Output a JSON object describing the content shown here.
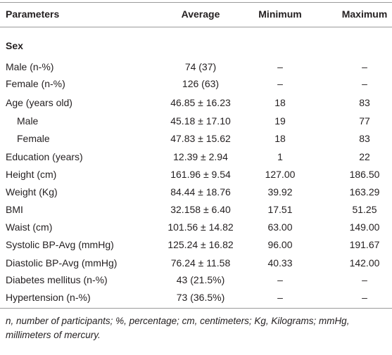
{
  "table": {
    "header": [
      "Parameters",
      "Average",
      "Minimum",
      "Maximum"
    ],
    "section": "Sex",
    "rows": [
      [
        "Male (n-%)",
        "74 (37)",
        "–",
        "–"
      ],
      [
        "Female (n-%)",
        "126 (63)",
        "–",
        "–"
      ],
      [
        "Age (years old)",
        "46.85 ± 16.23",
        "18",
        "83"
      ],
      [
        "Male",
        "45.18 ± 17.10",
        "19",
        "77"
      ],
      [
        "Female",
        "47.83 ± 15.62",
        "18",
        "83"
      ],
      [
        "Education (years)",
        "12.39 ± 2.94",
        "1",
        "22"
      ],
      [
        "Height (cm)",
        "161.96 ± 9.54",
        "127.00",
        "186.50"
      ],
      [
        "Weight (Kg)",
        "84.44 ± 18.76",
        "39.92",
        "163.29"
      ],
      [
        "BMI",
        "32.158 ± 6.40",
        "17.51",
        "51.25"
      ],
      [
        "Waist (cm)",
        "101.56 ± 14.82",
        "63.00",
        "149.00"
      ],
      [
        "Systolic BP-Avg (mmHg)",
        "125.24 ± 16.82",
        "96.00",
        "191.67"
      ],
      [
        "Diastolic BP-Avg (mmHg)",
        "76.24 ± 11.58",
        "40.33",
        "142.00"
      ],
      [
        "Diabetes mellitus (n-%)",
        "43 (21.5%)",
        "–",
        "–"
      ],
      [
        "Hypertension (n-%)",
        "73 (36.5%)",
        "–",
        "–"
      ]
    ],
    "footnote": "n, number of participants; %, percentage; cm, centimeters; Kg, Kilograms; mmHg, millimeters of mercury."
  }
}
